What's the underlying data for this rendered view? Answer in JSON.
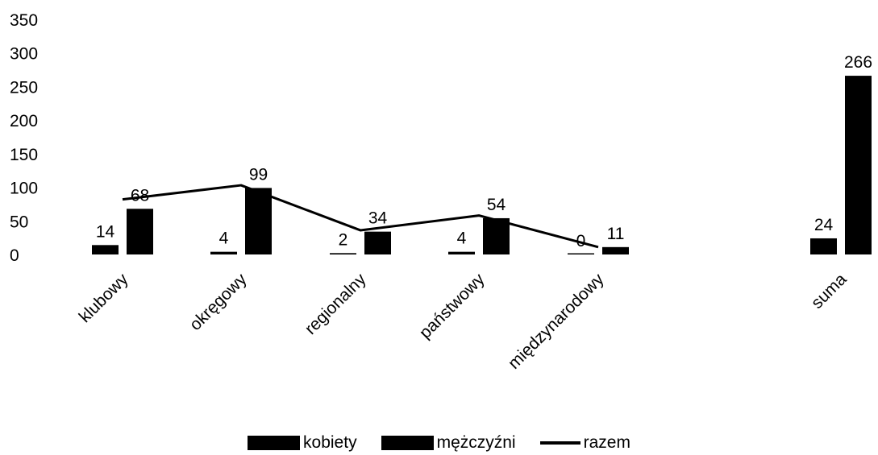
{
  "chart_data": {
    "type": "bar",
    "categories": [
      "klubowy",
      "okręgowy",
      "regionalny",
      "państwowy",
      "międzynarodowy",
      "suma"
    ],
    "series": [
      {
        "name": "kobiety",
        "kind": "bar",
        "values": [
          14,
          4,
          2,
          4,
          0,
          24
        ]
      },
      {
        "name": "mężczyźni",
        "kind": "bar",
        "values": [
          68,
          99,
          34,
          54,
          11,
          266
        ]
      },
      {
        "name": "razem",
        "kind": "line",
        "values": [
          82,
          103,
          36,
          58,
          11,
          null
        ]
      }
    ],
    "y_ticks": [
      "0",
      "50",
      "100",
      "150",
      "200",
      "250",
      "300",
      "350"
    ],
    "ylim": [
      0,
      350
    ],
    "title": "",
    "xlabel": "",
    "ylabel": "",
    "grid": false,
    "legend_position": "bottom",
    "bar_color": "#000000",
    "line_color": "#000000"
  }
}
